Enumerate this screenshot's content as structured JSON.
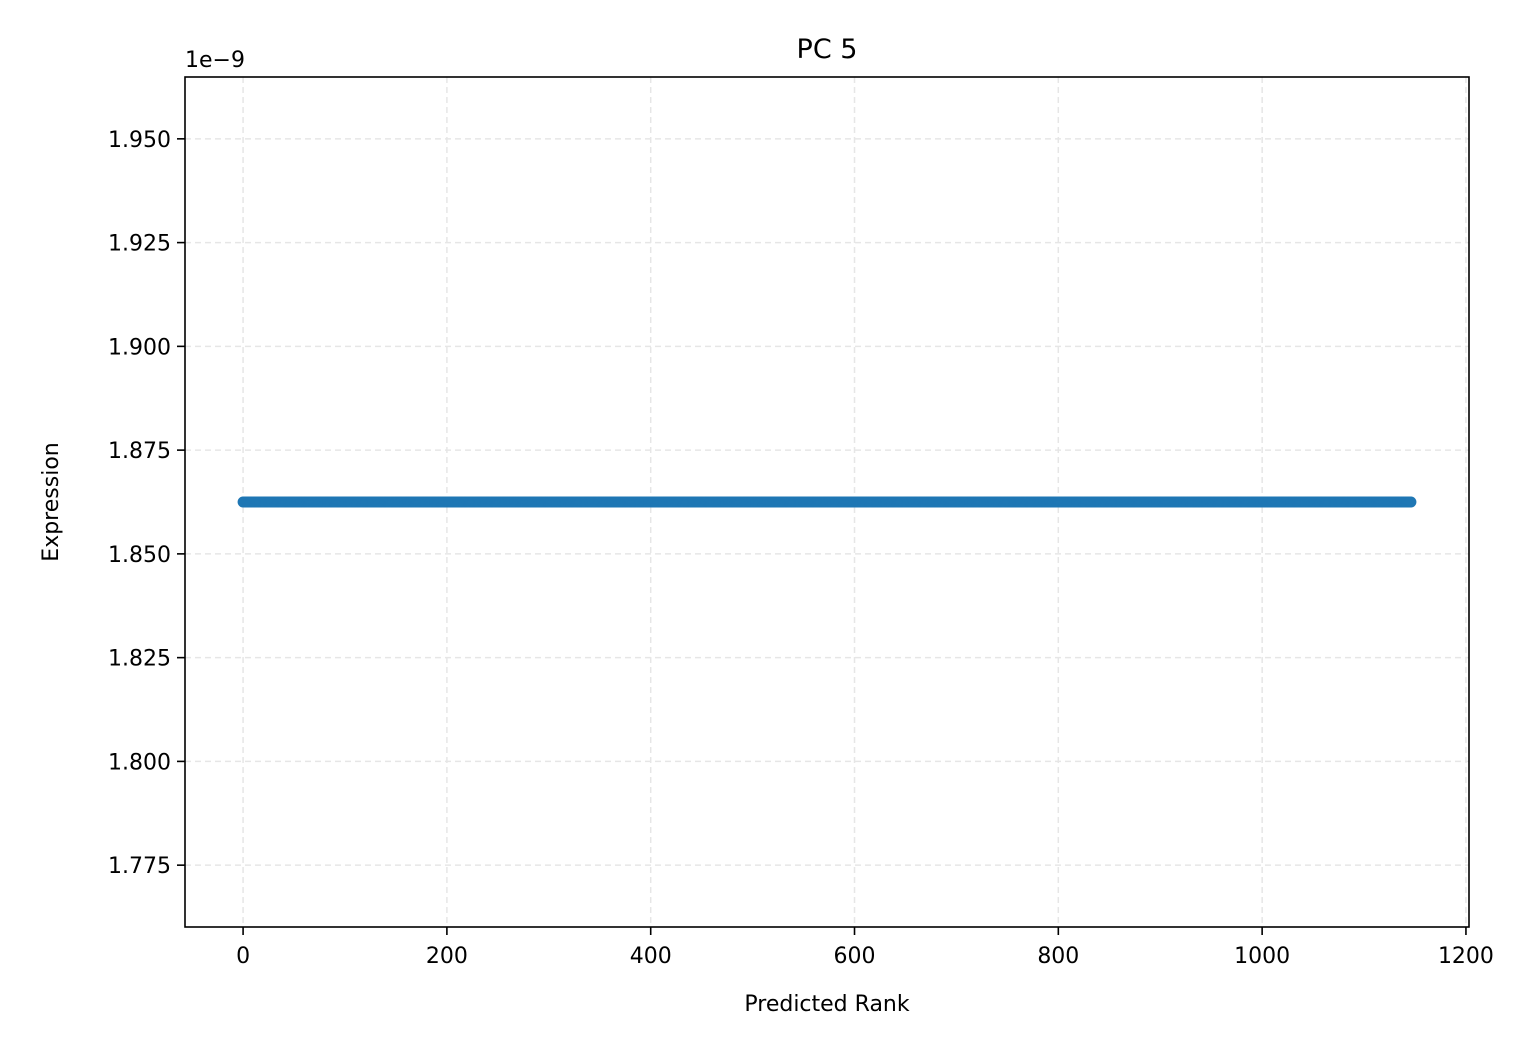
{
  "chart_data": {
    "type": "scatter",
    "title": "PC 5",
    "xlabel": "Predicted Rank",
    "ylabel": "Expression",
    "y_offset_label": "1e−9",
    "xlim": [
      -57,
      1203
    ],
    "ylim": [
      1.7601,
      1.9649
    ],
    "x_ticks": [
      0,
      200,
      400,
      600,
      800,
      1000,
      1200
    ],
    "x_tick_labels": [
      "0",
      "200",
      "400",
      "600",
      "800",
      "1000",
      "1200"
    ],
    "y_ticks": [
      1.775,
      1.8,
      1.825,
      1.85,
      1.875,
      1.9,
      1.925,
      1.95
    ],
    "y_tick_labels": [
      "1.775",
      "1.800",
      "1.825",
      "1.850",
      "1.875",
      "1.900",
      "1.925",
      "1.950"
    ],
    "grid": true,
    "series": [
      {
        "color": "#1f77b4",
        "x_range": [
          0,
          1146
        ],
        "y_value": 1.8625,
        "point_count": 1147
      }
    ]
  }
}
